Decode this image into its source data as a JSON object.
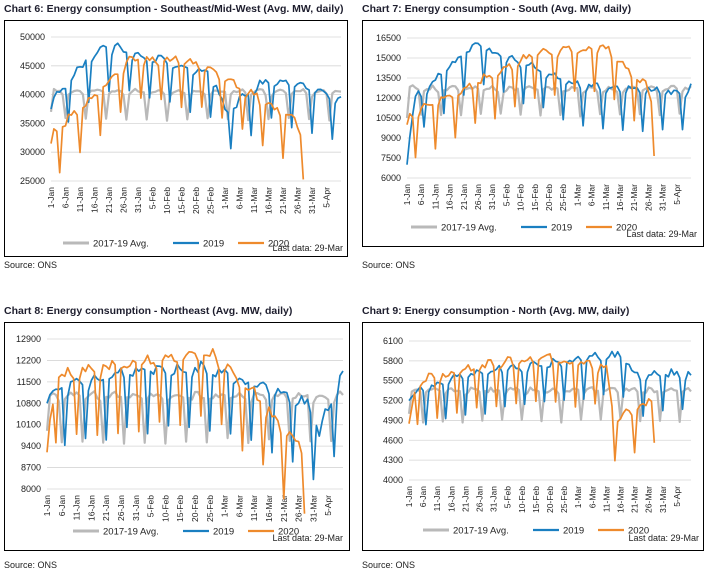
{
  "colors": {
    "avg": "#b9b9b9",
    "y2019": "#1a7fc1",
    "y2020": "#ee8a2c",
    "grid": "#d6d6d6"
  },
  "chart_data": [
    {
      "id": "c6",
      "type": "line",
      "title": "Chart 6: Energy consumption - Southeast/Mid-West (Avg. MW, daily)",
      "source": "Source: ONS",
      "last_data": "Last data: 29-Mar",
      "ylim": [
        25000,
        50000
      ],
      "yticks": [
        "25000",
        "30000",
        "35000",
        "40000",
        "45000",
        "50000"
      ],
      "xlabels": [
        "1-Jan",
        "6-Jan",
        "11-Jan",
        "16-Jan",
        "21-Jan",
        "26-Jan",
        "31-Jan",
        "5-Feb",
        "10-Feb",
        "15-Feb",
        "20-Feb",
        "25-Feb",
        "1-Mar",
        "6-Mar",
        "11-Mar",
        "16-Mar",
        "21-Mar",
        "26-Mar",
        "31-Mar",
        "5-Apr"
      ],
      "n_days": 101,
      "series": [
        {
          "name": "2017-19 Avg.",
          "color_key": "avg",
          "level": 39500,
          "amp": 2800,
          "lowfrac": 0.12,
          "noise": 600,
          "phase": 1,
          "len": 101,
          "start": 37000
        },
        {
          "name": "2019",
          "color_key": "y2019",
          "level": 41000,
          "amp": 3800,
          "lowfrac": 0.18,
          "noise": 1300,
          "phase": 0,
          "len": 101,
          "start": 37500,
          "anchors": [
            [
              0,
              37000
            ],
            [
              12,
              44500
            ],
            [
              20,
              47000
            ],
            [
              24,
              46500
            ],
            [
              55,
              42500
            ],
            [
              60,
              35500
            ],
            [
              75,
              41500
            ],
            [
              98,
              38500
            ]
          ]
        },
        {
          "name": "2020",
          "color_key": "y2020",
          "level": 40500,
          "amp": 3700,
          "lowfrac": 0.22,
          "noise": 1300,
          "phase": 3,
          "len": 88,
          "start": 31500,
          "anchors": [
            [
              0,
              31500
            ],
            [
              28,
              45000
            ],
            [
              45,
              44500
            ],
            [
              57,
              42500
            ],
            [
              78,
              36000
            ],
            [
              82,
              35500
            ],
            [
              87,
              31500
            ]
          ]
        }
      ]
    },
    {
      "id": "c7",
      "type": "line",
      "title": "Chart 7: Energy consumption - South (Avg. MW, daily)",
      "source": "Source: ONS",
      "last_data": "Last data: 29-Mar",
      "ylim": [
        6000,
        16500
      ],
      "yticks": [
        "6000",
        "7500",
        "9000",
        "10500",
        "12000",
        "13500",
        "15000",
        "16500"
      ],
      "xlabels": [
        "1-Jan",
        "6-Jan",
        "11-Jan",
        "16-Jan",
        "21-Jan",
        "26-Jan",
        "31-Jan",
        "5-Feb",
        "10-Feb",
        "15-Feb",
        "20-Feb",
        "25-Feb",
        "1-Mar",
        "6-Mar",
        "11-Mar",
        "16-Mar",
        "21-Mar",
        "26-Mar",
        "31-Mar",
        "5-Apr"
      ],
      "n_days": 101,
      "series": [
        {
          "name": "2017-19 Avg.",
          "color_key": "avg",
          "level": 12300,
          "amp": 1100,
          "lowfrac": 0.15,
          "noise": 350,
          "phase": 1,
          "len": 101,
          "start": 10500
        },
        {
          "name": "2019",
          "color_key": "y2019",
          "level": 12700,
          "amp": 1500,
          "lowfrac": 0.2,
          "noise": 500,
          "phase": 0,
          "len": 101,
          "start": 7000,
          "anchors": [
            [
              0,
              7000
            ],
            [
              3,
              11500
            ],
            [
              22,
              15200
            ],
            [
              26,
              15300
            ],
            [
              60,
              12500
            ],
            [
              96,
              11800
            ],
            [
              100,
              12300
            ]
          ]
        },
        {
          "name": "2020",
          "color_key": "y2020",
          "level": 12800,
          "amp": 1600,
          "lowfrac": 0.22,
          "noise": 500,
          "phase": 3,
          "len": 88,
          "start": 10000,
          "anchors": [
            [
              0,
              10000
            ],
            [
              45,
              14800
            ],
            [
              70,
              15200
            ],
            [
              75,
              14000
            ],
            [
              84,
              12500
            ],
            [
              87,
              10500
            ]
          ]
        }
      ]
    },
    {
      "id": "c8",
      "type": "line",
      "title": "Chart 8: Energy consumption - Northeast (Avg. MW, daily)",
      "source": "Source: ONS",
      "last_data": "Last data: 29-Mar",
      "ylim": [
        8000,
        12900
      ],
      "yticks": [
        "8000",
        "8700",
        "9400",
        "10100",
        "10800",
        "11500",
        "12200",
        "12900"
      ],
      "xlabels": [
        "1-Jan",
        "6-Jan",
        "11-Jan",
        "16-Jan",
        "21-Jan",
        "26-Jan",
        "31-Jan",
        "5-Feb",
        "10-Feb",
        "15-Feb",
        "20-Feb",
        "25-Feb",
        "1-Mar",
        "6-Mar",
        "11-Mar",
        "16-Mar",
        "21-Mar",
        "26-Mar",
        "31-Mar",
        "5-Apr"
      ],
      "n_days": 101,
      "series": [
        {
          "name": "2017-19 Avg.",
          "color_key": "avg",
          "level": 10800,
          "amp": 650,
          "lowfrac": 0.3,
          "noise": 220,
          "phase": 1,
          "len": 101,
          "start": 9900
        },
        {
          "name": "2019",
          "color_key": "y2019",
          "level": 11100,
          "amp": 900,
          "lowfrac": 0.28,
          "noise": 350,
          "phase": 0,
          "len": 101,
          "start": 10800,
          "anchors": [
            [
              0,
              10800
            ],
            [
              25,
              11500
            ],
            [
              55,
              11600
            ],
            [
              88,
              10500
            ],
            [
              92,
              9600
            ],
            [
              100,
              11500
            ]
          ]
        },
        {
          "name": "2020",
          "color_key": "y2020",
          "level": 11100,
          "amp": 950,
          "lowfrac": 0.3,
          "noise": 350,
          "phase": 3,
          "len": 88,
          "start": 9200,
          "anchors": [
            [
              0,
              9200
            ],
            [
              3,
              11400
            ],
            [
              55,
              12100
            ],
            [
              70,
              10800
            ],
            [
              80,
              9600
            ],
            [
              87,
              8900
            ]
          ]
        }
      ]
    },
    {
      "id": "c9",
      "type": "line",
      "title": "Chart 9: Energy consumption - North (Avg. MW, daily)",
      "source": "Source: ONS",
      "last_data": "Last data: 29-Mar",
      "ylim": [
        4000,
        6100
      ],
      "yticks": [
        "4000",
        "4300",
        "4600",
        "4900",
        "5200",
        "5500",
        "5800",
        "6100"
      ],
      "xlabels": [
        "1-Jan",
        "6-Jan",
        "11-Jan",
        "16-Jan",
        "21-Jan",
        "26-Jan",
        "31-Jan",
        "5-Feb",
        "10-Feb",
        "15-Feb",
        "20-Feb",
        "25-Feb",
        "1-Mar",
        "6-Mar",
        "11-Mar",
        "16-Mar",
        "21-Mar",
        "26-Mar",
        "31-Mar",
        "5-Apr"
      ],
      "n_days": 101,
      "series": [
        {
          "name": "2017-19 Avg.",
          "color_key": "avg",
          "level": 5280,
          "amp": 200,
          "lowfrac": 0.3,
          "noise": 70,
          "phase": 1,
          "len": 101,
          "start": 5000
        },
        {
          "name": "2019",
          "color_key": "y2019",
          "level": 5400,
          "amp": 260,
          "lowfrac": 0.3,
          "noise": 110,
          "phase": 0,
          "len": 101,
          "start": 5200,
          "anchors": [
            [
              0,
              5200
            ],
            [
              20,
              5500
            ],
            [
              45,
              5650
            ],
            [
              75,
              5800
            ],
            [
              80,
              5500
            ],
            [
              100,
              5520
            ]
          ]
        },
        {
          "name": "2020",
          "color_key": "y2020",
          "level": 5450,
          "amp": 280,
          "lowfrac": 0.3,
          "noise": 120,
          "phase": 3,
          "len": 88,
          "start": 4850,
          "anchors": [
            [
              0,
              4850
            ],
            [
              3,
              5400
            ],
            [
              35,
              5700
            ],
            [
              50,
              5750
            ],
            [
              70,
              5600
            ],
            [
              73,
              4850
            ],
            [
              87,
              5100
            ]
          ]
        }
      ]
    }
  ]
}
